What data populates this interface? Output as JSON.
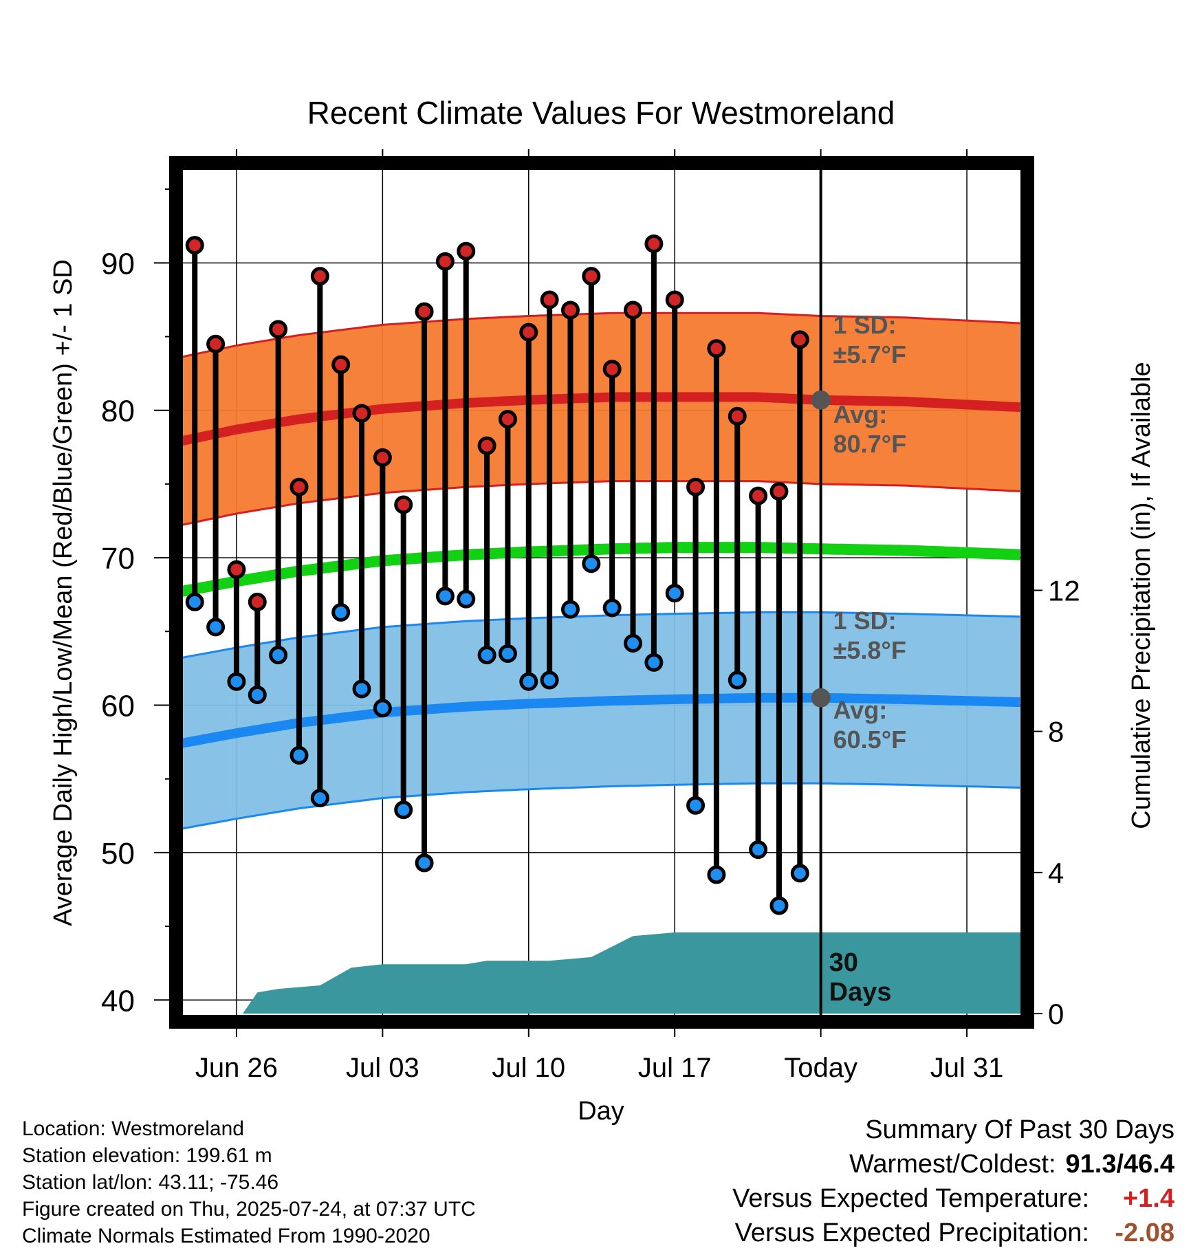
{
  "chart_data": {
    "type": "line",
    "title": "Recent Climate Values For Westmoreland",
    "xlabel": "Day",
    "ylabel": "Average Daily High/Low/Mean (Red/Blue/Green) +/- 1 SD",
    "y2label": "Cumulative Precipitation (in), If Available",
    "ylim": [
      38.8,
      96.5
    ],
    "y2lim": [
      0,
      24
    ],
    "yticks": [
      40,
      50,
      60,
      70,
      80,
      90
    ],
    "y2ticks": [
      0,
      4,
      8,
      12
    ],
    "xtick_labels": [
      {
        "day": 2,
        "label": "Jun 26"
      },
      {
        "day": 9,
        "label": "Jul 03"
      },
      {
        "day": 16,
        "label": "Jul 10"
      },
      {
        "day": 23,
        "label": "Jul 17"
      },
      {
        "day": 30,
        "label": "Today"
      },
      {
        "day": 37,
        "label": "Jul 31"
      }
    ],
    "x_range_days": [
      -0.7,
      39.7
    ],
    "today_day": 30,
    "days": [
      0,
      1,
      2,
      3,
      4,
      5,
      6,
      7,
      8,
      9,
      10,
      11,
      12,
      13,
      14,
      15,
      16,
      17,
      18,
      19,
      20,
      21,
      22,
      23,
      24,
      25,
      26,
      27,
      28,
      29
    ],
    "highs": [
      91.2,
      84.5,
      69.2,
      67.0,
      85.5,
      74.8,
      89.1,
      83.1,
      79.8,
      76.8,
      73.6,
      86.7,
      90.1,
      90.8,
      77.6,
      79.4,
      85.3,
      87.5,
      86.8,
      89.1,
      82.8,
      86.8,
      91.3,
      87.5,
      74.8,
      84.2,
      79.6,
      74.2,
      74.5,
      84.8
    ],
    "lows": [
      67.0,
      65.3,
      61.6,
      60.7,
      63.4,
      56.6,
      53.7,
      66.3,
      61.1,
      59.8,
      52.9,
      49.3,
      67.4,
      67.2,
      63.4,
      63.5,
      61.6,
      61.7,
      66.5,
      69.6,
      66.6,
      64.2,
      62.9,
      67.6,
      53.2,
      48.5,
      61.7,
      50.2,
      46.4,
      48.6
    ],
    "normals": {
      "days": [
        -0.7,
        2,
        5,
        9,
        13,
        16,
        20,
        23,
        27,
        30,
        34,
        39.7
      ],
      "avg_high": [
        77.9,
        78.7,
        79.4,
        80.1,
        80.5,
        80.7,
        80.9,
        80.9,
        80.9,
        80.7,
        80.6,
        80.2
      ],
      "avg_low": [
        57.4,
        58.1,
        58.8,
        59.5,
        59.9,
        60.1,
        60.3,
        60.4,
        60.5,
        60.5,
        60.4,
        60.2
      ],
      "avg_mean": [
        67.7,
        68.4,
        69.1,
        69.8,
        70.2,
        70.4,
        70.6,
        70.7,
        70.7,
        70.6,
        70.5,
        70.2
      ],
      "high_sd": 5.7,
      "low_sd": 5.8
    },
    "precip_cumulative": {
      "days": [
        2.3,
        3,
        4,
        6,
        7.5,
        9,
        11,
        13,
        14,
        15,
        17,
        19,
        21,
        23,
        25,
        27,
        29,
        30,
        32,
        35,
        39.7
      ],
      "values": [
        0,
        0.6,
        0.7,
        0.8,
        1.3,
        1.4,
        1.4,
        1.4,
        1.5,
        1.5,
        1.5,
        1.6,
        2.2,
        2.3,
        2.3,
        2.3,
        2.3,
        2.3,
        2.3,
        2.3,
        2.3
      ]
    },
    "annotations": {
      "high_sd_label": "1 SD:",
      "high_sd_value": "±5.7°F",
      "high_avg_label": "Avg:",
      "high_avg_value": "80.7°F",
      "low_sd_label": "1 SD:",
      "low_sd_value": "±5.8°F",
      "low_avg_label": "Avg:",
      "low_avg_value": "60.5°F",
      "window_label_1": "30",
      "window_label_2": "Days"
    },
    "today_avg_high": 80.7,
    "today_avg_low": 60.5,
    "colors": {
      "high_band": "#f47a30",
      "high_line": "#d42020",
      "low_band": "#82c0e6",
      "low_line": "#1a88f0",
      "mean_line": "#12d012",
      "precip": "#3a979e",
      "high_dot": "#d02626",
      "low_dot": "#1e8ff0",
      "annotation": "#555555"
    }
  },
  "footer": {
    "location": "Location: Westmoreland",
    "elevation": "Station elevation: 199.61 m",
    "latlon": "Station lat/lon: 43.11; -75.46",
    "created": "Figure created on Thu, 2025-07-24, at 07:37 UTC",
    "normals": "Climate Normals Estimated From 1990-2020"
  },
  "summary": {
    "heading": "Summary Of Past 30 Days",
    "warm_cold_label": "Warmest/Coldest:",
    "warm_cold_value": "91.3/46.4",
    "temp_label": "Versus Expected Temperature:",
    "temp_value": "+1.4",
    "temp_color": "#d42020",
    "precip_label": "Versus Expected Precipitation:",
    "precip_value": "-2.08",
    "precip_color": "#a0522d"
  }
}
